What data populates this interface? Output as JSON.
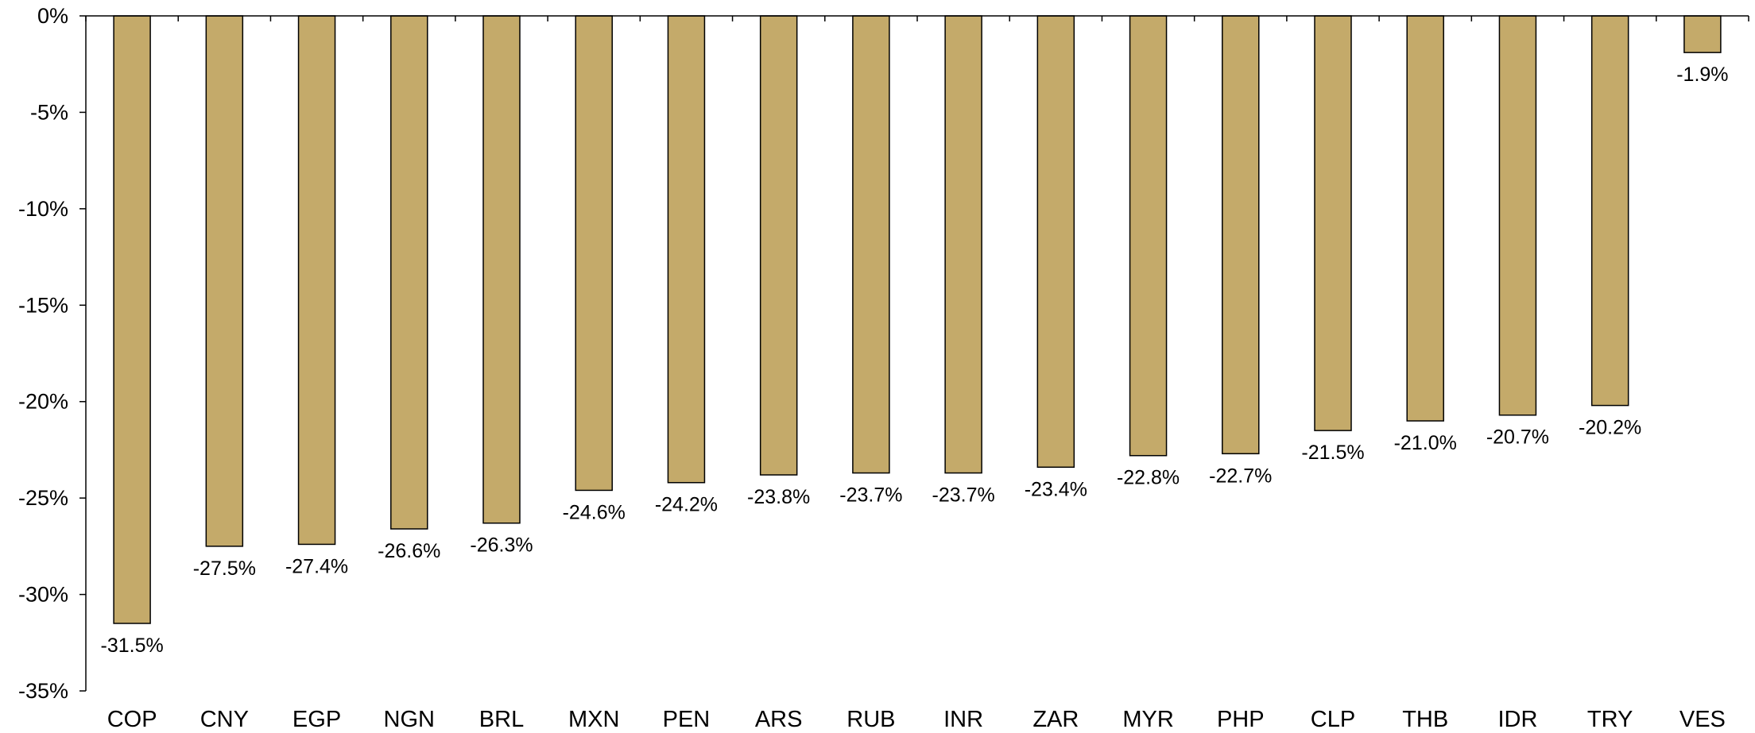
{
  "chart_data": {
    "type": "bar",
    "title": "",
    "xlabel": "",
    "ylabel": "",
    "categories": [
      "COP",
      "CNY",
      "EGP",
      "NGN",
      "BRL",
      "MXN",
      "PEN",
      "ARS",
      "RUB",
      "INR",
      "ZAR",
      "MYR",
      "PHP",
      "CLP",
      "THB",
      "IDR",
      "TRY",
      "VES"
    ],
    "values": [
      -31.5,
      -27.5,
      -27.4,
      -26.6,
      -26.3,
      -24.6,
      -24.2,
      -23.8,
      -23.7,
      -23.7,
      -23.4,
      -22.8,
      -22.7,
      -21.5,
      -21.0,
      -20.7,
      -20.2,
      -1.9
    ],
    "data_labels": [
      "-31.5%",
      "-27.5%",
      "-27.4%",
      "-26.6%",
      "-26.3%",
      "-24.6%",
      "-24.2%",
      "-23.8%",
      "-23.7%",
      "-23.7%",
      "-23.4%",
      "-22.8%",
      "-22.7%",
      "-21.5%",
      "-21.0%",
      "-20.7%",
      "-20.2%",
      "-1.9%"
    ],
    "ylim": [
      -35,
      0
    ],
    "yticks": [
      0,
      -5,
      -10,
      -15,
      -20,
      -25,
      -30,
      -35
    ],
    "ytick_labels": [
      "0%",
      "-5%",
      "-10%",
      "-15%",
      "-20%",
      "-25%",
      "-30%",
      "-35%"
    ],
    "legend": "none",
    "grid": false,
    "colors": {
      "bar_fill": "#C4AA6A",
      "bar_stroke": "#000000",
      "axis": "#000000"
    }
  }
}
